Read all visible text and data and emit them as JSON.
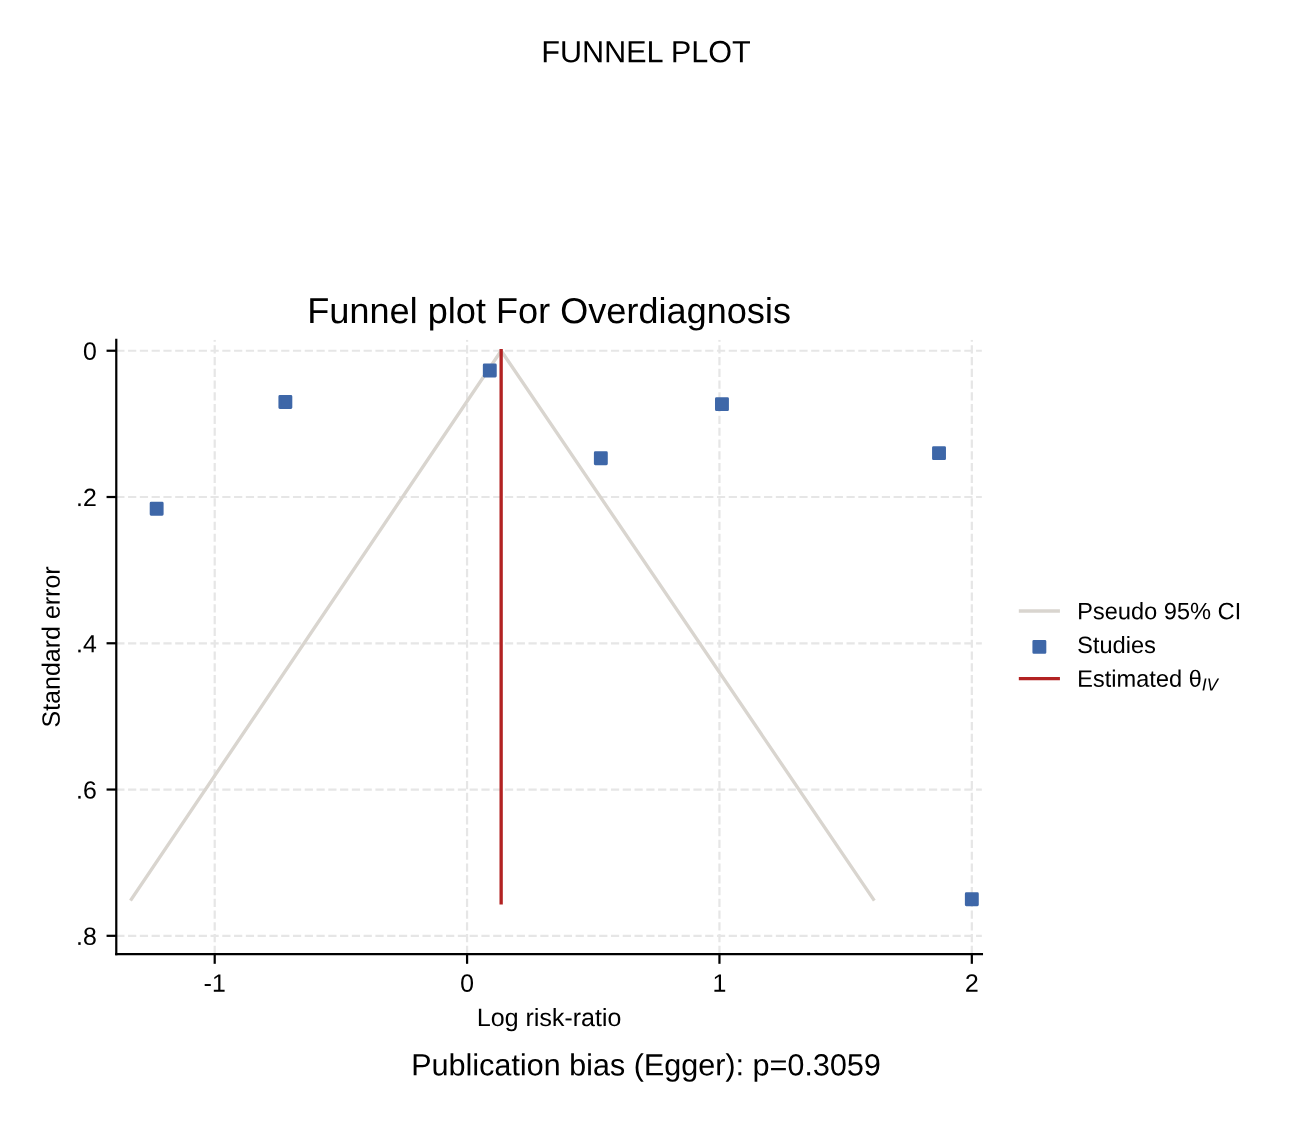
{
  "chart_data": {
    "type": "scatter",
    "title": "FUNNEL PLOT",
    "subtitle": "Funnel plot For Overdiagnosis",
    "xlabel": "Log risk-ratio",
    "ylabel": "Standard error",
    "series": [
      {
        "name": "Pseudo 95% CI",
        "type": "line",
        "color": "#d9d5cf",
        "x": [
          -1.33,
          0.135,
          1.61
        ],
        "values": [
          0.75,
          0,
          0.75
        ]
      },
      {
        "name": "Studies",
        "color": "#3e67a8",
        "marker": "square",
        "x": [
          -1.23,
          -0.72,
          0.09,
          0.53,
          1.01,
          1.87,
          2.0
        ],
        "values": [
          0.216,
          0.07,
          0.027,
          0.147,
          0.073,
          0.14,
          0.75
        ]
      },
      {
        "name": "Estimated θ$_{IV}$",
        "type": "line",
        "color": "#b22222",
        "x": [
          0.135,
          0.135
        ],
        "values": [
          0,
          0.755
        ]
      }
    ],
    "xlim": [
      -1.39,
      2.04
    ],
    "ylim": [
      0.825,
      -0.015
    ],
    "xticks": [
      -1,
      0,
      1,
      2
    ],
    "yticks": [
      0,
      {
        "value": 0.2,
        "label": ".2"
      },
      {
        "value": 0.4,
        "label": ".4"
      },
      {
        "value": 0.6,
        "label": ".6"
      },
      {
        "value": 0.8,
        "label": ".8"
      }
    ],
    "grid": true,
    "legend": "right",
    "annotations": [
      "Publication bias (Egger): p=0.3059"
    ]
  }
}
